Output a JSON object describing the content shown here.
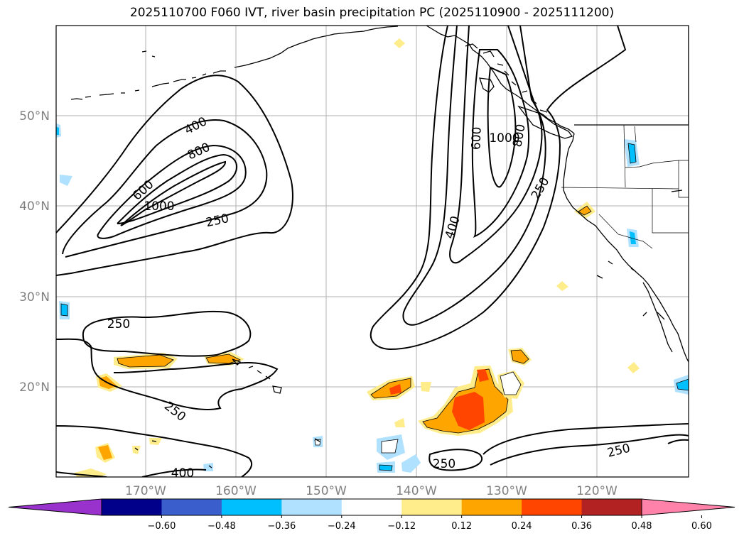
{
  "title": "2025110700 F060 IVT, river basin precipitation PC (2025110900 - 2025111200)",
  "lat_labels": [
    "50°N",
    "40°N",
    "30°N",
    "20°N"
  ],
  "lon_labels": [
    "170°W",
    "160°W",
    "150°W",
    "140°W",
    "130°W",
    "120°W"
  ],
  "contour_labels": [
    "400",
    "800",
    "600",
    "1000",
    "250",
    "600",
    "1000",
    "800",
    "400",
    "250",
    "250",
    "250",
    "400",
    "250",
    "250"
  ],
  "colorbar": {
    "ticks": [
      "−0.60",
      "−0.48",
      "−0.36",
      "−0.24",
      "−0.12",
      "0.12",
      "0.24",
      "0.36",
      "0.48",
      "0.60"
    ],
    "colors": [
      "#9932cc",
      "#00008b",
      "#3a5fcd",
      "#00bfff",
      "#b0e2ff",
      "#ffffff",
      "#ffec8b",
      "#ffa500",
      "#ff4500",
      "#b22222",
      "#ff82ab"
    ]
  }
}
